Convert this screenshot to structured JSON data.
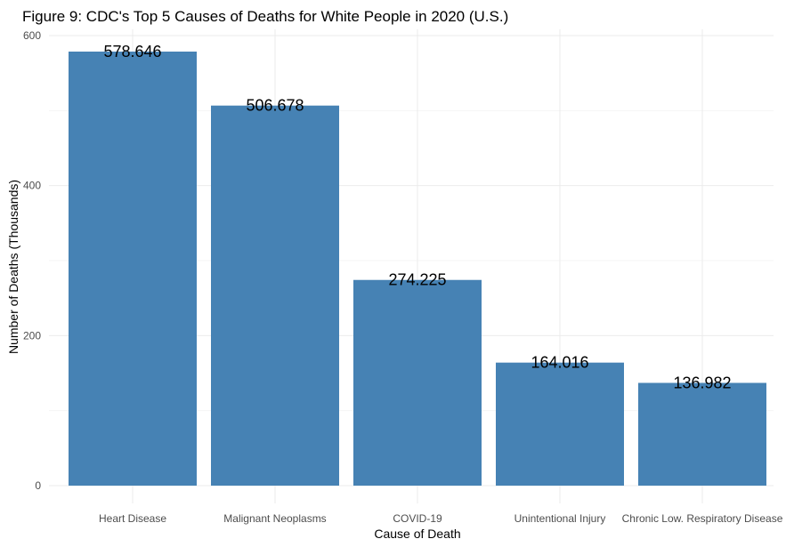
{
  "chart_data": {
    "type": "bar",
    "title": "Figure 9: CDC's Top 5 Causes of Deaths for White People in 2020 (U.S.)",
    "xlabel": "Cause of Death",
    "ylabel": "Number of Deaths (Thousands)",
    "categories": [
      "Heart Disease",
      "Malignant Neoplasms",
      "COVID-19",
      "Unintentional Injury",
      "Chronic Low. Respiratory Disease"
    ],
    "values": [
      578.646,
      506.678,
      274.225,
      164.016,
      136.982
    ],
    "data_labels": [
      "578.646",
      "506.678",
      "274.225",
      "164.016",
      "136.982"
    ],
    "ylim": [
      0,
      600
    ],
    "yticks": [
      0,
      200,
      400,
      600
    ],
    "grid": true,
    "bar_color": "#4682B4"
  }
}
